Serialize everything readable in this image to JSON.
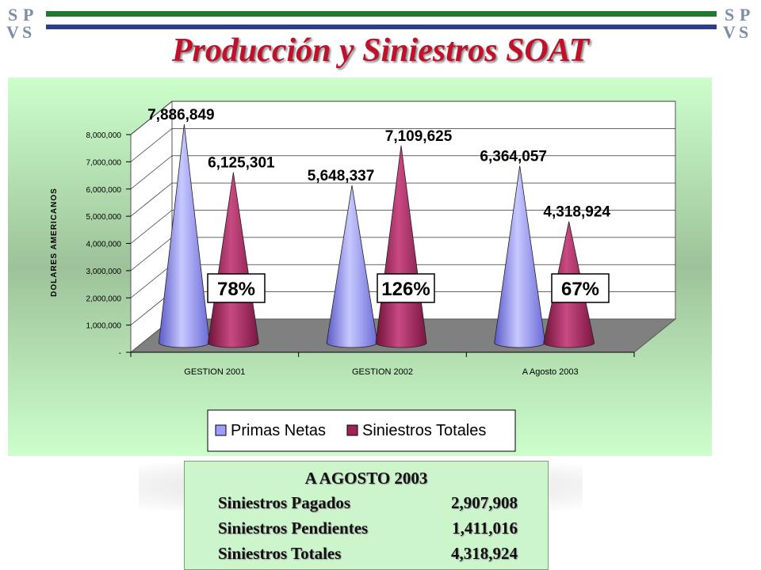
{
  "title": "Producción y Siniestros SOAT",
  "chart_data": {
    "type": "bar",
    "style": "3d-cone",
    "categories": [
      "GESTION 2001",
      "GESTION 2002",
      "A Agosto 2003"
    ],
    "series": [
      {
        "name": "Primas Netas",
        "values": [
          7886849,
          5648337,
          6364057
        ],
        "color": "#9d9dff"
      },
      {
        "name": "Siniestros Totales",
        "values": [
          6125301,
          7109625,
          4318924
        ],
        "color": "#a0245a"
      }
    ],
    "data_labels": [
      [
        "7,886,849",
        "6,125,301"
      ],
      [
        "5,648,337",
        "7,109,625"
      ],
      [
        "6,364,057",
        "4,318,924"
      ]
    ],
    "ratio_labels": [
      "78%",
      "126%",
      "67%"
    ],
    "ylabel": "DOLARES AMERICANOS",
    "ylim": [
      0,
      8000000
    ],
    "yticks": [
      0,
      1000000,
      2000000,
      3000000,
      4000000,
      5000000,
      6000000,
      7000000,
      8000000
    ],
    "ytick_labels": [
      "-",
      "1,000,000",
      "2,000,000",
      "3,000,000",
      "4,000,000",
      "5,000,000",
      "6,000,000",
      "7,000,000",
      "8,000,000"
    ],
    "grid": true,
    "legend_position": "bottom-right",
    "background": "#ccffcc"
  },
  "summary": {
    "heading": "A AGOSTO 2003",
    "rows": [
      {
        "label": "Siniestros Pagados",
        "value": "2,907,908"
      },
      {
        "label": "Siniestros Pendientes",
        "value": "1,411,016"
      },
      {
        "label": "Siniestros Totales",
        "value": "4,318,924"
      }
    ]
  }
}
